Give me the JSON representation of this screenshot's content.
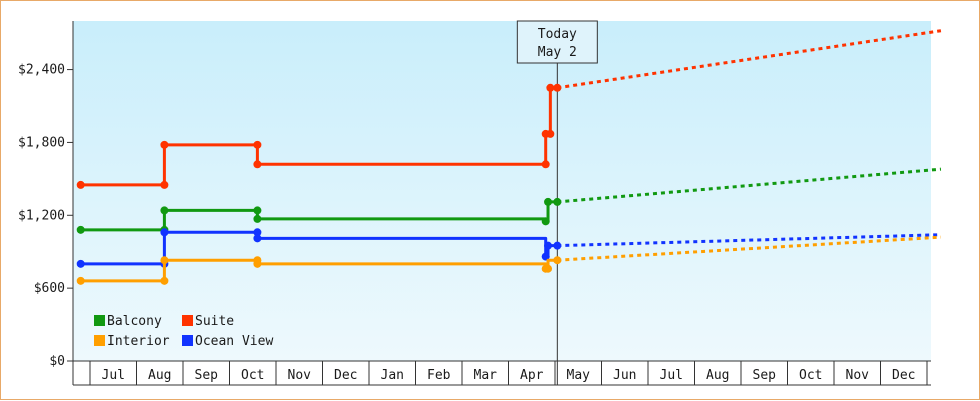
{
  "chart_data": {
    "type": "line",
    "y_ticks": [
      "$0",
      "$600",
      "$1,200",
      "$1,800",
      "$2,400"
    ],
    "y_tick_values": [
      0,
      600,
      1200,
      1800,
      2400
    ],
    "ylim": [
      0,
      2800
    ],
    "x_ticks": [
      "Jul",
      "Aug",
      "Sep",
      "Oct",
      "Nov",
      "Dec",
      "Jan",
      "Feb",
      "Mar",
      "Apr",
      "May",
      "Jun",
      "Jul",
      "Aug",
      "Sep",
      "Oct",
      "Nov",
      "Dec"
    ],
    "xlim_months": [
      0,
      18.3
    ],
    "today": {
      "line1": "Today",
      "line2": "May 2",
      "x": 10.05
    },
    "legend": {
      "placement": "bottom-left"
    },
    "colors": {
      "background_top": "#c9eefb",
      "background_bottom": "#eef9fd",
      "axis": "#333333"
    },
    "series": [
      {
        "name": "Suite",
        "color": "#ff3300",
        "history": [
          [
            -0.2,
            1450
          ],
          [
            1.6,
            1450
          ],
          [
            1.6,
            1780
          ],
          [
            3.6,
            1780
          ],
          [
            3.6,
            1620
          ],
          [
            9.8,
            1620
          ],
          [
            9.8,
            1870
          ],
          [
            9.9,
            1870
          ],
          [
            9.9,
            2250
          ],
          [
            10.05,
            2250
          ]
        ],
        "points": [
          [
            -0.2,
            1450
          ],
          [
            1.6,
            1450
          ],
          [
            1.6,
            1780
          ],
          [
            3.6,
            1780
          ],
          [
            3.6,
            1620
          ],
          [
            9.8,
            1620
          ],
          [
            9.8,
            1870
          ],
          [
            9.9,
            1870
          ],
          [
            9.9,
            2250
          ],
          [
            10.05,
            2250
          ]
        ],
        "forecast": [
          [
            10.05,
            2250
          ],
          [
            18.3,
            2720
          ]
        ]
      },
      {
        "name": "Balcony",
        "color": "#119911",
        "history": [
          [
            -0.2,
            1080
          ],
          [
            1.6,
            1080
          ],
          [
            1.6,
            1240
          ],
          [
            3.6,
            1240
          ],
          [
            3.6,
            1170
          ],
          [
            9.8,
            1170
          ],
          [
            9.8,
            1150
          ],
          [
            9.85,
            1150
          ],
          [
            9.85,
            1310
          ],
          [
            10.05,
            1310
          ]
        ],
        "points": [
          [
            -0.2,
            1080
          ],
          [
            1.6,
            1080
          ],
          [
            1.6,
            1240
          ],
          [
            3.6,
            1240
          ],
          [
            3.6,
            1170
          ],
          [
            9.8,
            1150
          ],
          [
            9.85,
            1310
          ],
          [
            10.05,
            1310
          ]
        ],
        "forecast": [
          [
            10.05,
            1310
          ],
          [
            18.3,
            1580
          ]
        ]
      },
      {
        "name": "Ocean View",
        "color": "#1133ff",
        "history": [
          [
            -0.2,
            800
          ],
          [
            1.6,
            800
          ],
          [
            1.6,
            1060
          ],
          [
            3.6,
            1060
          ],
          [
            3.6,
            1010
          ],
          [
            9.8,
            1010
          ],
          [
            9.8,
            860
          ],
          [
            9.85,
            860
          ],
          [
            9.85,
            950
          ],
          [
            10.05,
            950
          ]
        ],
        "points": [
          [
            -0.2,
            800
          ],
          [
            1.6,
            800
          ],
          [
            1.6,
            1060
          ],
          [
            3.6,
            1060
          ],
          [
            3.6,
            1010
          ],
          [
            9.8,
            860
          ],
          [
            9.85,
            950
          ],
          [
            10.05,
            950
          ]
        ],
        "forecast": [
          [
            10.05,
            950
          ],
          [
            18.3,
            1040
          ]
        ]
      },
      {
        "name": "Interior",
        "color": "#ff9f00",
        "history": [
          [
            -0.2,
            660
          ],
          [
            1.6,
            660
          ],
          [
            1.6,
            830
          ],
          [
            3.6,
            830
          ],
          [
            3.6,
            800
          ],
          [
            9.8,
            800
          ],
          [
            9.8,
            760
          ],
          [
            9.85,
            760
          ],
          [
            9.85,
            830
          ],
          [
            10.05,
            830
          ]
        ],
        "points": [
          [
            -0.2,
            660
          ],
          [
            1.6,
            660
          ],
          [
            1.6,
            830
          ],
          [
            3.6,
            830
          ],
          [
            3.6,
            800
          ],
          [
            9.8,
            760
          ],
          [
            9.85,
            760
          ],
          [
            10.05,
            830
          ]
        ],
        "forecast": [
          [
            10.05,
            830
          ],
          [
            18.3,
            1020
          ]
        ]
      }
    ],
    "legend_entries": [
      {
        "name": "Balcony",
        "color": "#119911"
      },
      {
        "name": "Suite",
        "color": "#ff3300"
      },
      {
        "name": "Interior",
        "color": "#ff9f00"
      },
      {
        "name": "Ocean View",
        "color": "#1133ff"
      }
    ]
  }
}
